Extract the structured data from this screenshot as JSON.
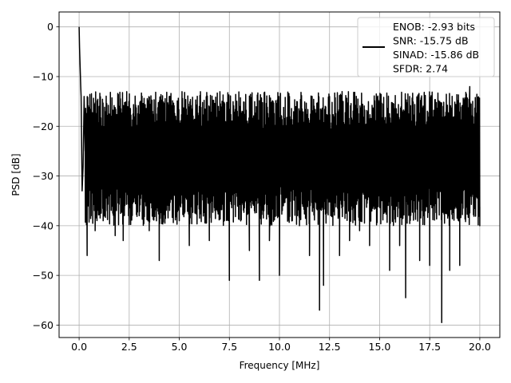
{
  "chart_data": {
    "type": "line",
    "xlabel": "Frequency [MHz]",
    "ylabel": "PSD [dB]",
    "xlim": [
      -1.0,
      21.0
    ],
    "ylim": [
      -62.5,
      3.0
    ],
    "xticks": [
      0.0,
      2.5,
      5.0,
      7.5,
      10.0,
      12.5,
      15.0,
      17.5,
      20.0
    ],
    "xtick_labels": [
      "0.0",
      "2.5",
      "5.0",
      "7.5",
      "10.0",
      "12.5",
      "15.0",
      "17.5",
      "20.0"
    ],
    "yticks": [
      0,
      -10,
      -20,
      -30,
      -40,
      -50,
      -60
    ],
    "ytick_labels": [
      "0",
      "−10",
      "−20",
      "−30",
      "−40",
      "−50",
      "−60"
    ],
    "grid": true,
    "legend_position": "top-right",
    "series": [
      {
        "name": "ENOB: -2.93 bits\nSNR: -15.75 dB\nSINAD: -15.86 dB\nSFDR: 2.74",
        "color": "#000000",
        "x_start": 0.0,
        "x_end": 20.0,
        "dense_band": {
          "upper": -17.0,
          "lower": -36.0
        },
        "x": [
          0.0,
          0.02,
          0.05,
          0.08,
          0.1,
          0.15,
          0.2,
          0.25,
          0.3,
          0.4,
          0.5,
          0.6,
          0.8,
          1.0,
          1.2,
          1.4,
          1.6,
          1.8,
          2.0,
          2.2,
          2.5,
          2.8,
          3.0,
          3.5,
          4.0,
          4.5,
          5.0,
          5.5,
          6.0,
          6.5,
          7.0,
          7.5,
          8.0,
          8.5,
          9.0,
          9.5,
          10.0,
          10.5,
          11.0,
          11.5,
          12.0,
          12.2,
          12.5,
          13.0,
          13.5,
          14.0,
          14.5,
          15.0,
          15.5,
          16.0,
          16.3,
          16.5,
          17.0,
          17.5,
          18.0,
          18.1,
          18.5,
          19.0,
          19.5,
          20.0
        ],
        "y": [
          0.0,
          -4.0,
          -8.0,
          -12.0,
          -14.0,
          -33.0,
          -28.0,
          -14.0,
          -25.0,
          -46.0,
          -17.0,
          -38.0,
          -41.0,
          -16.0,
          -39.0,
          -37.0,
          -18.0,
          -42.0,
          -16.0,
          -43.0,
          -38.0,
          -15.0,
          -38.0,
          -41.0,
          -47.0,
          -14.0,
          -39.0,
          -44.0,
          -16.0,
          -43.0,
          -38.0,
          -51.0,
          -16.0,
          -45.0,
          -51.0,
          -43.0,
          -50.0,
          -14.0,
          -40.0,
          -46.0,
          -57.0,
          -52.0,
          -14.0,
          -46.0,
          -43.0,
          -41.0,
          -44.0,
          -15.0,
          -49.0,
          -44.0,
          -54.5,
          -14.0,
          -47.0,
          -48.0,
          -15.0,
          -59.5,
          -49.0,
          -48.0,
          -12.0,
          -40.0
        ]
      }
    ]
  }
}
